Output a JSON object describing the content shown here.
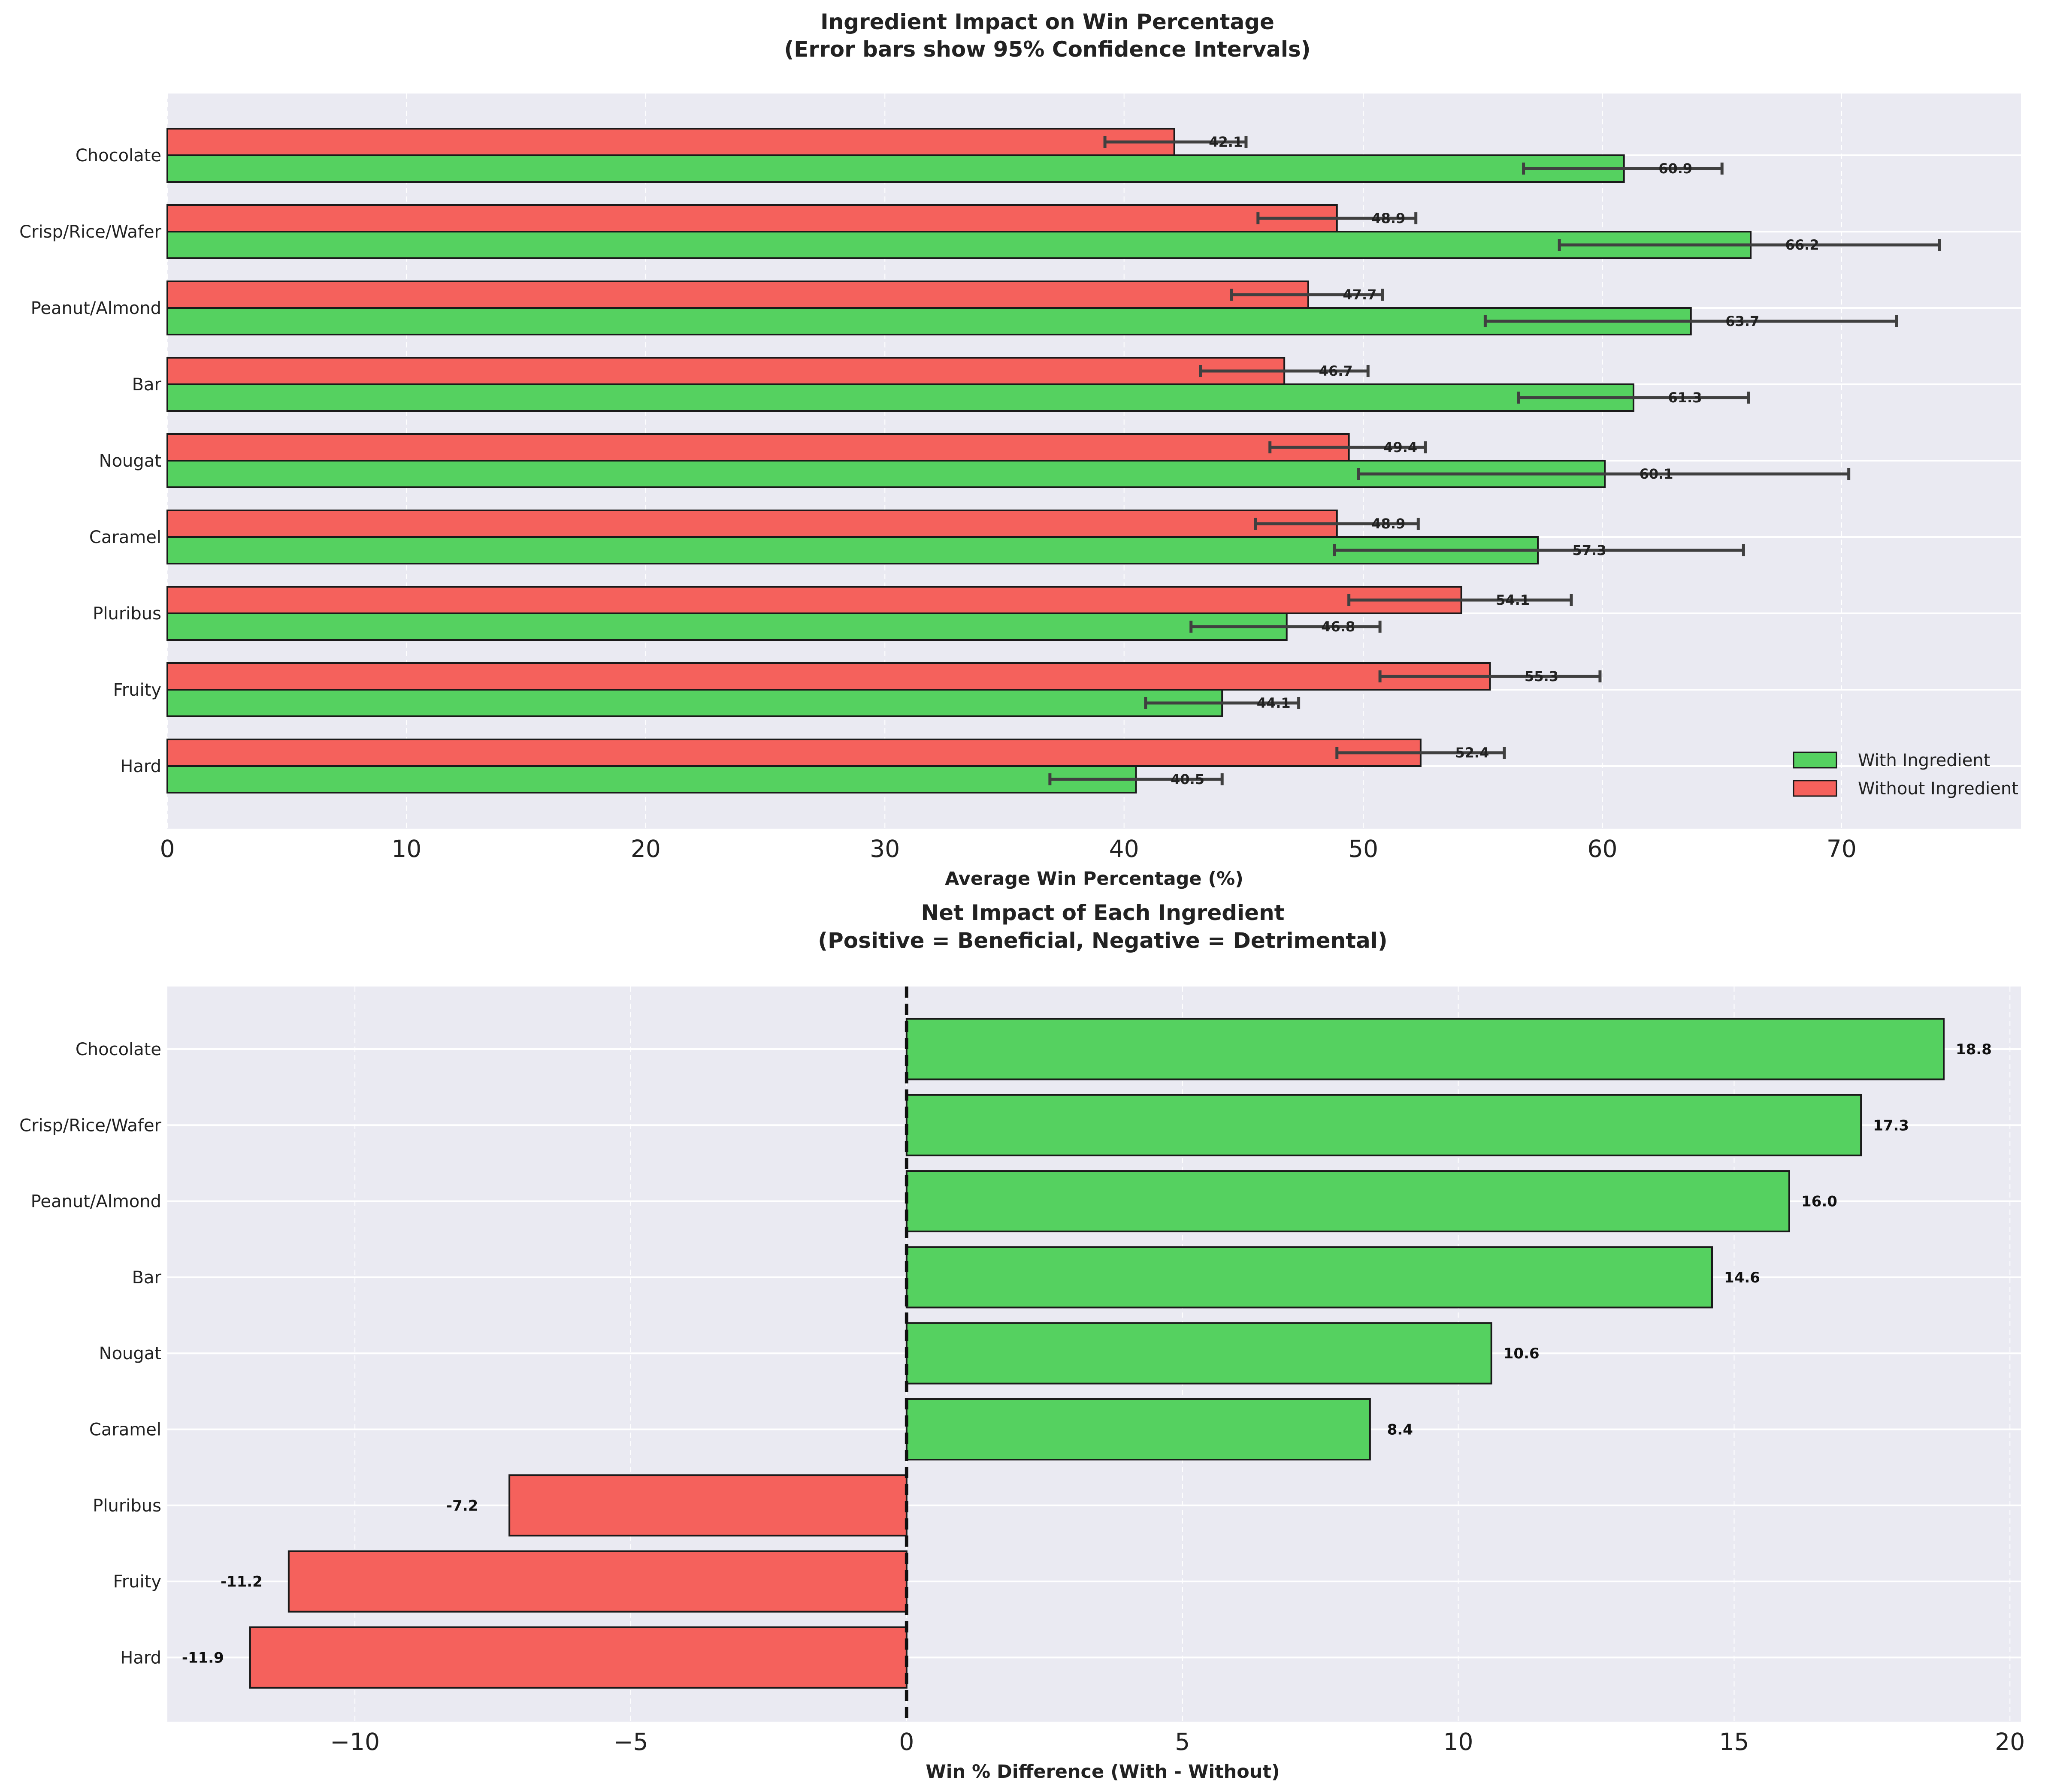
{
  "colors": {
    "with": "#55D160",
    "without": "#F5615C",
    "panel_bg": "#EAEAF2",
    "grid": "#ffffff",
    "edge": "#1a1a1a",
    "errbar": "#404040"
  },
  "chart_data": [
    {
      "type": "bar",
      "orientation": "horizontal",
      "title": "Ingredient Impact on Win Percentage",
      "subtitle": "(Error bars show 95% Confidence Intervals)",
      "xlabel": "Average Win Percentage (%)",
      "ylabel": "",
      "xlim": [
        0,
        77.5
      ],
      "xticks": [
        0,
        10,
        20,
        30,
        40,
        50,
        60,
        70
      ],
      "categories": [
        "Chocolate",
        "Crisp/Rice/Wafer",
        "Peanut/Almond",
        "Bar",
        "Nougat",
        "Caramel",
        "Pluribus",
        "Fruity",
        "Hard"
      ],
      "series": [
        {
          "name": "With Ingredient",
          "values": [
            60.9,
            66.2,
            63.7,
            61.3,
            60.1,
            57.3,
            46.8,
            44.1,
            40.5
          ],
          "value_labels": [
            "60.9",
            "66.2",
            "63.7",
            "61.3",
            "60.1",
            "57.3",
            "46.8",
            "44.1",
            "40.5"
          ],
          "ci_low": [
            56.7,
            58.2,
            55.1,
            56.5,
            49.8,
            48.8,
            42.8,
            40.9,
            36.9
          ],
          "ci_high": [
            65.0,
            74.1,
            72.3,
            66.1,
            70.3,
            65.9,
            50.7,
            47.3,
            44.1
          ]
        },
        {
          "name": "Without Ingredient",
          "values": [
            42.1,
            48.9,
            47.7,
            46.7,
            49.4,
            48.9,
            54.1,
            55.3,
            52.4
          ],
          "value_labels": [
            "42.1",
            "48.9",
            "47.7",
            "46.7",
            "49.4",
            "48.9",
            "54.1",
            "55.3",
            "52.4"
          ],
          "ci_low": [
            39.2,
            45.6,
            44.5,
            43.2,
            46.1,
            45.5,
            49.4,
            50.7,
            48.9
          ],
          "ci_high": [
            45.1,
            52.2,
            50.8,
            50.2,
            52.6,
            52.3,
            58.7,
            59.9,
            55.9
          ]
        }
      ],
      "legend": {
        "placement": "bottom-right",
        "entries": [
          "With Ingredient",
          "Without Ingredient"
        ]
      },
      "grid": true
    },
    {
      "type": "bar",
      "orientation": "horizontal",
      "title": "Net Impact of Each Ingredient",
      "subtitle": "(Positive = Beneficial, Negative = Detrimental)",
      "xlabel": "Win % Difference (With - Without)",
      "ylabel": "",
      "xlim": [
        -13.4,
        20.2
      ],
      "xticks": [
        -10,
        -5,
        0,
        5,
        10,
        15,
        20
      ],
      "xtick_labels": [
        "−10",
        "−5",
        "0",
        "5",
        "10",
        "15",
        "20"
      ],
      "categories": [
        "Chocolate",
        "Crisp/Rice/Wafer",
        "Peanut/Almond",
        "Bar",
        "Nougat",
        "Caramel",
        "Pluribus",
        "Fruity",
        "Hard"
      ],
      "values": [
        18.8,
        17.3,
        16.0,
        14.6,
        10.6,
        8.4,
        -7.2,
        -11.2,
        -11.9
      ],
      "value_labels": [
        "18.8",
        "17.3",
        "16.0",
        "14.6",
        "10.6",
        "8.4",
        "-7.2",
        "-11.2",
        "-11.9"
      ],
      "reference_line": 0,
      "grid": true
    }
  ]
}
